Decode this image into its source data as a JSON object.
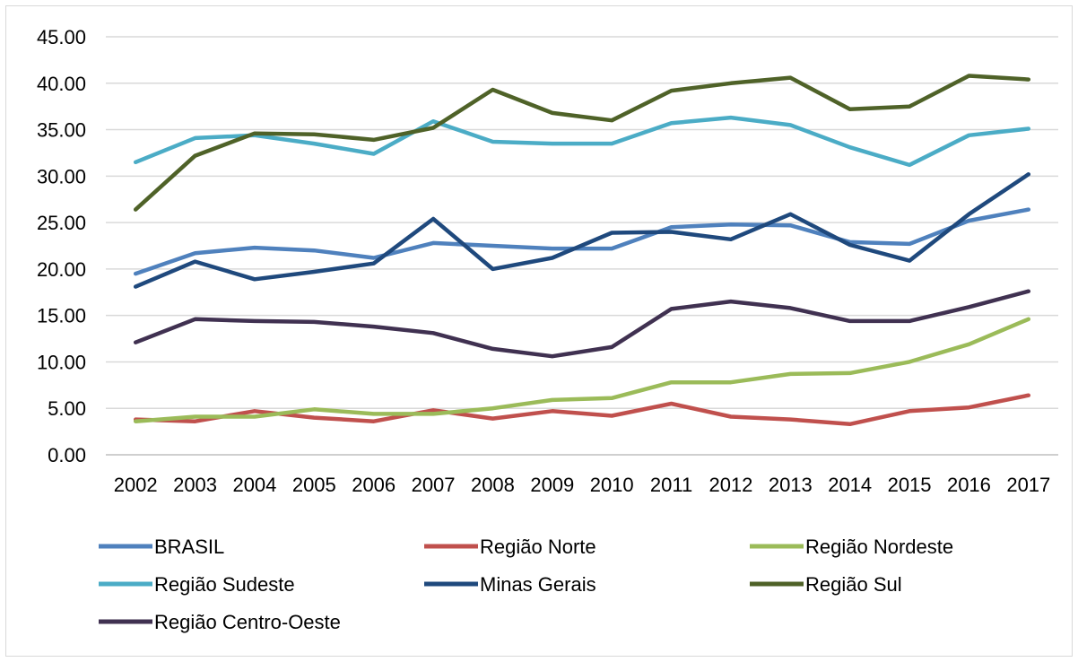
{
  "chart_data": {
    "type": "line",
    "title": "",
    "xlabel": "",
    "ylabel": "",
    "ylim": [
      0,
      45
    ],
    "yticks": [
      "0.00",
      "5.00",
      "10.00",
      "15.00",
      "20.00",
      "25.00",
      "30.00",
      "35.00",
      "40.00",
      "45.00"
    ],
    "categories": [
      "2002",
      "2003",
      "2004",
      "2005",
      "2006",
      "2007",
      "2008",
      "2009",
      "2010",
      "2011",
      "2012",
      "2013",
      "2014",
      "2015",
      "2016",
      "2017"
    ],
    "grid": true,
    "legend_position": "bottom",
    "series": [
      {
        "name": "BRASIL",
        "color": "#4f81bd",
        "values": [
          19.5,
          21.7,
          22.3,
          22.0,
          21.2,
          22.8,
          22.5,
          22.2,
          22.2,
          24.5,
          24.8,
          24.7,
          22.9,
          22.7,
          25.2,
          26.4
        ]
      },
      {
        "name": "Região Norte",
        "color": "#c0504d",
        "values": [
          3.8,
          3.6,
          4.7,
          4.0,
          3.6,
          4.8,
          3.9,
          4.7,
          4.2,
          5.5,
          4.1,
          3.8,
          3.3,
          4.7,
          5.1,
          6.4
        ]
      },
      {
        "name": "Região Nordeste",
        "color": "#9bbb59",
        "values": [
          3.6,
          4.1,
          4.1,
          4.9,
          4.4,
          4.4,
          5.0,
          5.9,
          6.1,
          7.8,
          7.8,
          8.7,
          8.8,
          10.0,
          11.9,
          14.6
        ]
      },
      {
        "name": "Região Sudeste",
        "color": "#4bacc6",
        "values": [
          31.5,
          34.1,
          34.4,
          33.5,
          32.4,
          35.9,
          33.7,
          33.5,
          33.5,
          35.7,
          36.3,
          35.5,
          33.1,
          31.2,
          34.4,
          35.1
        ]
      },
      {
        "name": "Minas Gerais",
        "color": "#1f497d",
        "values": [
          18.1,
          20.8,
          18.9,
          19.7,
          20.6,
          25.4,
          20.0,
          21.2,
          23.9,
          24.0,
          23.2,
          25.9,
          22.6,
          20.9,
          25.9,
          30.2
        ]
      },
      {
        "name": "Região Sul",
        "color": "#4f6228",
        "values": [
          26.4,
          32.2,
          34.6,
          34.5,
          33.9,
          35.2,
          39.3,
          36.8,
          36.0,
          39.2,
          40.0,
          40.6,
          37.2,
          37.5,
          40.8,
          40.4
        ]
      },
      {
        "name": "Região Centro-Oeste",
        "color": "#403151",
        "values": [
          12.1,
          14.6,
          14.4,
          14.3,
          13.8,
          13.1,
          11.4,
          10.6,
          11.6,
          15.7,
          16.5,
          15.8,
          14.4,
          14.4,
          15.9,
          17.6
        ]
      }
    ]
  }
}
